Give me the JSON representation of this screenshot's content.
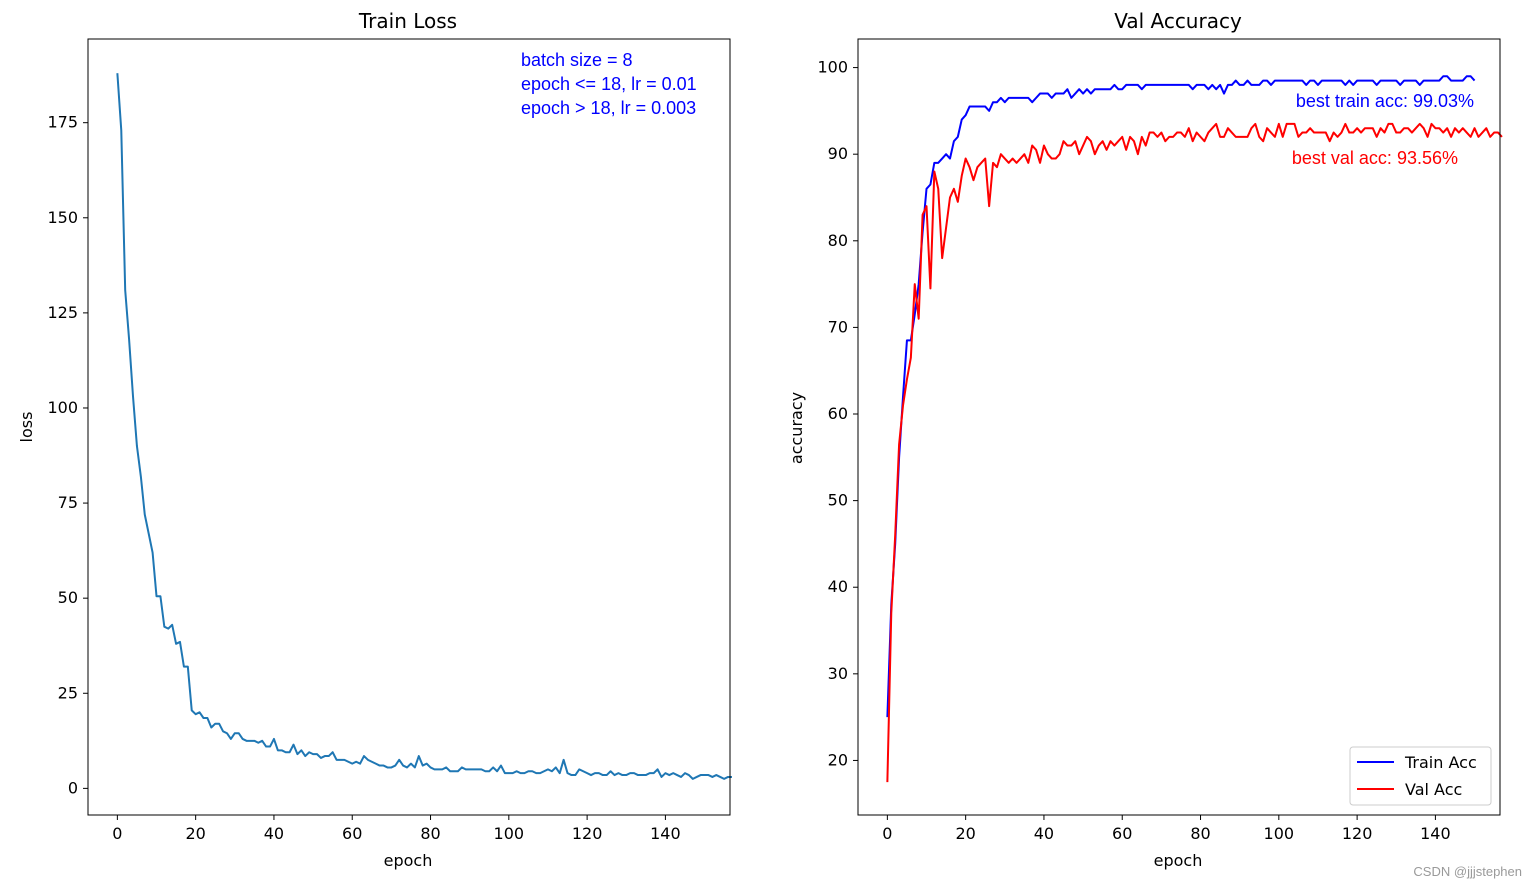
{
  "watermark": "CSDN @jjjstephen",
  "chart_data": [
    {
      "type": "line",
      "title": "Train Loss",
      "xlabel": "epoch",
      "ylabel": "loss",
      "xlim": [
        -7.5,
        156.5
      ],
      "ylim": [
        -7,
        197
      ],
      "xticks": [
        0,
        20,
        40,
        60,
        80,
        100,
        120,
        140
      ],
      "yticks": [
        0,
        25,
        50,
        75,
        100,
        125,
        150,
        175
      ],
      "annotations": [
        {
          "text": "batch size = 8",
          "color": "#0000ff"
        },
        {
          "text": "epoch <= 18,  lr = 0.01",
          "color": "#0000ff"
        },
        {
          "text": "epoch > 18,  lr = 0.003",
          "color": "#0000ff"
        }
      ],
      "series": [
        {
          "name": "loss",
          "color": "#1f77b4",
          "values": [
            188,
            173,
            131,
            118,
            103,
            90,
            82,
            72,
            67,
            62,
            50.5,
            50.5,
            42.5,
            42,
            43,
            38,
            38.5,
            32,
            32,
            20.5,
            19.5,
            20,
            18.5,
            18.5,
            16,
            17,
            17,
            15,
            14.5,
            13,
            14.5,
            14.5,
            13,
            12.5,
            12.5,
            12.5,
            12,
            12.5,
            11,
            11,
            13,
            10,
            10,
            9.5,
            9.5,
            11.5,
            9,
            10,
            8.5,
            9.5,
            9,
            9,
            8,
            8.5,
            8.5,
            9.5,
            7.5,
            7.5,
            7.5,
            7,
            6.5,
            7,
            6.5,
            8.5,
            7.5,
            7,
            6.5,
            6,
            6,
            5.5,
            5.5,
            6,
            7.5,
            6,
            5.5,
            6.5,
            5.5,
            8.5,
            6,
            6.5,
            5.5,
            5,
            5,
            5,
            5.5,
            4.5,
            4.5,
            4.5,
            5.5,
            5,
            5,
            5,
            5,
            5,
            4.5,
            4.5,
            5.5,
            4.5,
            6,
            4,
            4,
            4,
            4.5,
            4,
            4,
            4.5,
            4.5,
            4,
            4,
            4.5,
            5,
            4.5,
            5.5,
            4,
            7.5,
            4,
            3.5,
            3.5,
            5,
            4.5,
            4,
            3.5,
            4,
            4,
            3.5,
            3.5,
            4.5,
            3.5,
            4,
            3.5,
            3.5,
            4,
            4,
            3.5,
            3.5,
            3.5,
            4,
            4,
            5,
            3,
            4,
            3.5,
            4,
            3.5,
            3,
            4,
            3.5,
            2.5,
            3,
            3.5,
            3.5,
            3.5,
            3,
            3.5,
            3,
            2.5,
            3,
            3
          ]
        }
      ]
    },
    {
      "type": "line",
      "title": "Val Accuracy",
      "xlabel": "epoch",
      "ylabel": "accuracy",
      "xlim": [
        -7.5,
        156.5
      ],
      "ylim": [
        13.7,
        103.3
      ],
      "xticks": [
        0,
        20,
        40,
        60,
        80,
        100,
        120,
        140
      ],
      "yticks": [
        20,
        30,
        40,
        50,
        60,
        70,
        80,
        90,
        100
      ],
      "annotations": [
        {
          "text": "best train acc: 99.03%",
          "color": "#0000ff"
        },
        {
          "text": "best val acc: 93.56%",
          "color": "#ff0000"
        }
      ],
      "legend": {
        "position": "lower-right",
        "entries": [
          "Train Acc",
          "Val Acc"
        ]
      },
      "series": [
        {
          "name": "Train Acc",
          "color": "#0000ff",
          "values": [
            25,
            38,
            45,
            55,
            62,
            68.5,
            68.5,
            71.5,
            75,
            81,
            86,
            86.5,
            89,
            89,
            89.5,
            90,
            89.5,
            91.5,
            92,
            94,
            94.5,
            95.5,
            95.5,
            95.5,
            95.5,
            95.5,
            95,
            96,
            96,
            96.5,
            96,
            96.5,
            96.5,
            96.5,
            96.5,
            96.5,
            96.5,
            96,
            96.5,
            97,
            97,
            97,
            96.5,
            97,
            97,
            97,
            97.5,
            96.5,
            97,
            97.5,
            97,
            97.5,
            97,
            97.5,
            97.5,
            97.5,
            97.5,
            97.5,
            98,
            97.5,
            97.5,
            98,
            98,
            98,
            98,
            97.5,
            98,
            98,
            98,
            98,
            98,
            98,
            98,
            98,
            98,
            98,
            98,
            98,
            97.5,
            98,
            98,
            98,
            97.5,
            98,
            97.5,
            98,
            97,
            98,
            98,
            98.5,
            98,
            98,
            98.5,
            98,
            98,
            98,
            98.5,
            98.5,
            98,
            98.5,
            98.5,
            98.5,
            98.5,
            98.5,
            98.5,
            98.5,
            98.5,
            98,
            98.5,
            98.5,
            98,
            98.5,
            98.5,
            98.5,
            98.5,
            98.5,
            98.5,
            98,
            98.5,
            98,
            98.5,
            98.5,
            98.5,
            98.5,
            98.5,
            98,
            98.5,
            98.5,
            98.5,
            98.5,
            98.5,
            98,
            98.5,
            98.5,
            98.5,
            98.5,
            98,
            98.5,
            98.5,
            98.5,
            98.5,
            98.5,
            99,
            99,
            98.5,
            98.5,
            98.5,
            98.5,
            99,
            99,
            98.5
          ]
        },
        {
          "name": "Val Acc",
          "color": "#ff0000",
          "values": [
            17.5,
            37,
            46,
            56.5,
            61,
            64,
            66.5,
            75,
            71,
            83,
            84,
            74.5,
            88,
            86,
            78,
            81.5,
            85,
            86,
            84.5,
            87.5,
            89.5,
            88.5,
            87,
            88.5,
            89,
            89.5,
            84,
            89,
            88.5,
            90,
            89.5,
            89,
            89.5,
            89,
            89.5,
            90,
            89,
            91,
            90.5,
            89,
            91,
            90,
            89.5,
            89.5,
            90,
            91.5,
            91,
            91,
            91.5,
            90,
            91,
            92,
            91.5,
            90,
            91,
            91.5,
            90.5,
            91.5,
            91,
            91.5,
            92,
            90.5,
            92,
            91.5,
            90,
            92,
            91,
            92.5,
            92.5,
            92,
            92.5,
            91.5,
            92,
            92,
            92.5,
            92.5,
            92,
            93,
            91.5,
            92.5,
            92,
            91.5,
            92.5,
            93,
            93.5,
            92,
            92,
            93,
            92.5,
            92,
            92,
            92,
            92,
            93,
            93.5,
            92,
            91.5,
            93,
            92.5,
            92,
            93.5,
            92,
            93.5,
            93.5,
            93.5,
            92,
            92.5,
            92.5,
            93,
            92.5,
            92.5,
            92.5,
            92.5,
            91.5,
            92.5,
            92,
            92.5,
            93.5,
            92.5,
            92.5,
            93,
            92.5,
            93,
            93,
            93,
            92,
            93,
            92.5,
            93.5,
            93.5,
            92.5,
            92.5,
            93,
            93,
            92.5,
            93,
            93.5,
            93,
            92,
            93.5,
            93,
            93,
            92.5,
            93,
            92,
            93,
            92.5,
            93,
            92.5,
            92,
            93,
            92,
            92.5,
            93,
            92,
            92.5,
            92.5,
            92
          ]
        }
      ]
    }
  ]
}
